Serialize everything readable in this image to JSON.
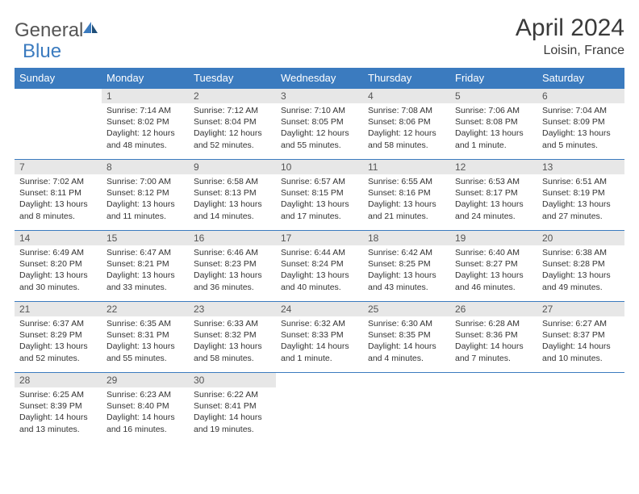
{
  "logo": {
    "text1": "General",
    "text2": "Blue"
  },
  "title": "April 2024",
  "location": "Loisin, France",
  "weekdays": [
    "Sunday",
    "Monday",
    "Tuesday",
    "Wednesday",
    "Thursday",
    "Friday",
    "Saturday"
  ],
  "colors": {
    "header_bg": "#3b7bbf",
    "header_text": "#ffffff",
    "daynum_bg": "#e7e7e7",
    "border": "#3b7bbf",
    "logo_blue": "#3b7bbf",
    "text": "#333333"
  },
  "weeks": [
    [
      null,
      {
        "n": "1",
        "sr": "Sunrise: 7:14 AM",
        "ss": "Sunset: 8:02 PM",
        "d1": "Daylight: 12 hours",
        "d2": "and 48 minutes."
      },
      {
        "n": "2",
        "sr": "Sunrise: 7:12 AM",
        "ss": "Sunset: 8:04 PM",
        "d1": "Daylight: 12 hours",
        "d2": "and 52 minutes."
      },
      {
        "n": "3",
        "sr": "Sunrise: 7:10 AM",
        "ss": "Sunset: 8:05 PM",
        "d1": "Daylight: 12 hours",
        "d2": "and 55 minutes."
      },
      {
        "n": "4",
        "sr": "Sunrise: 7:08 AM",
        "ss": "Sunset: 8:06 PM",
        "d1": "Daylight: 12 hours",
        "d2": "and 58 minutes."
      },
      {
        "n": "5",
        "sr": "Sunrise: 7:06 AM",
        "ss": "Sunset: 8:08 PM",
        "d1": "Daylight: 13 hours",
        "d2": "and 1 minute."
      },
      {
        "n": "6",
        "sr": "Sunrise: 7:04 AM",
        "ss": "Sunset: 8:09 PM",
        "d1": "Daylight: 13 hours",
        "d2": "and 5 minutes."
      }
    ],
    [
      {
        "n": "7",
        "sr": "Sunrise: 7:02 AM",
        "ss": "Sunset: 8:11 PM",
        "d1": "Daylight: 13 hours",
        "d2": "and 8 minutes."
      },
      {
        "n": "8",
        "sr": "Sunrise: 7:00 AM",
        "ss": "Sunset: 8:12 PM",
        "d1": "Daylight: 13 hours",
        "d2": "and 11 minutes."
      },
      {
        "n": "9",
        "sr": "Sunrise: 6:58 AM",
        "ss": "Sunset: 8:13 PM",
        "d1": "Daylight: 13 hours",
        "d2": "and 14 minutes."
      },
      {
        "n": "10",
        "sr": "Sunrise: 6:57 AM",
        "ss": "Sunset: 8:15 PM",
        "d1": "Daylight: 13 hours",
        "d2": "and 17 minutes."
      },
      {
        "n": "11",
        "sr": "Sunrise: 6:55 AM",
        "ss": "Sunset: 8:16 PM",
        "d1": "Daylight: 13 hours",
        "d2": "and 21 minutes."
      },
      {
        "n": "12",
        "sr": "Sunrise: 6:53 AM",
        "ss": "Sunset: 8:17 PM",
        "d1": "Daylight: 13 hours",
        "d2": "and 24 minutes."
      },
      {
        "n": "13",
        "sr": "Sunrise: 6:51 AM",
        "ss": "Sunset: 8:19 PM",
        "d1": "Daylight: 13 hours",
        "d2": "and 27 minutes."
      }
    ],
    [
      {
        "n": "14",
        "sr": "Sunrise: 6:49 AM",
        "ss": "Sunset: 8:20 PM",
        "d1": "Daylight: 13 hours",
        "d2": "and 30 minutes."
      },
      {
        "n": "15",
        "sr": "Sunrise: 6:47 AM",
        "ss": "Sunset: 8:21 PM",
        "d1": "Daylight: 13 hours",
        "d2": "and 33 minutes."
      },
      {
        "n": "16",
        "sr": "Sunrise: 6:46 AM",
        "ss": "Sunset: 8:23 PM",
        "d1": "Daylight: 13 hours",
        "d2": "and 36 minutes."
      },
      {
        "n": "17",
        "sr": "Sunrise: 6:44 AM",
        "ss": "Sunset: 8:24 PM",
        "d1": "Daylight: 13 hours",
        "d2": "and 40 minutes."
      },
      {
        "n": "18",
        "sr": "Sunrise: 6:42 AM",
        "ss": "Sunset: 8:25 PM",
        "d1": "Daylight: 13 hours",
        "d2": "and 43 minutes."
      },
      {
        "n": "19",
        "sr": "Sunrise: 6:40 AM",
        "ss": "Sunset: 8:27 PM",
        "d1": "Daylight: 13 hours",
        "d2": "and 46 minutes."
      },
      {
        "n": "20",
        "sr": "Sunrise: 6:38 AM",
        "ss": "Sunset: 8:28 PM",
        "d1": "Daylight: 13 hours",
        "d2": "and 49 minutes."
      }
    ],
    [
      {
        "n": "21",
        "sr": "Sunrise: 6:37 AM",
        "ss": "Sunset: 8:29 PM",
        "d1": "Daylight: 13 hours",
        "d2": "and 52 minutes."
      },
      {
        "n": "22",
        "sr": "Sunrise: 6:35 AM",
        "ss": "Sunset: 8:31 PM",
        "d1": "Daylight: 13 hours",
        "d2": "and 55 minutes."
      },
      {
        "n": "23",
        "sr": "Sunrise: 6:33 AM",
        "ss": "Sunset: 8:32 PM",
        "d1": "Daylight: 13 hours",
        "d2": "and 58 minutes."
      },
      {
        "n": "24",
        "sr": "Sunrise: 6:32 AM",
        "ss": "Sunset: 8:33 PM",
        "d1": "Daylight: 14 hours",
        "d2": "and 1 minute."
      },
      {
        "n": "25",
        "sr": "Sunrise: 6:30 AM",
        "ss": "Sunset: 8:35 PM",
        "d1": "Daylight: 14 hours",
        "d2": "and 4 minutes."
      },
      {
        "n": "26",
        "sr": "Sunrise: 6:28 AM",
        "ss": "Sunset: 8:36 PM",
        "d1": "Daylight: 14 hours",
        "d2": "and 7 minutes."
      },
      {
        "n": "27",
        "sr": "Sunrise: 6:27 AM",
        "ss": "Sunset: 8:37 PM",
        "d1": "Daylight: 14 hours",
        "d2": "and 10 minutes."
      }
    ],
    [
      {
        "n": "28",
        "sr": "Sunrise: 6:25 AM",
        "ss": "Sunset: 8:39 PM",
        "d1": "Daylight: 14 hours",
        "d2": "and 13 minutes."
      },
      {
        "n": "29",
        "sr": "Sunrise: 6:23 AM",
        "ss": "Sunset: 8:40 PM",
        "d1": "Daylight: 14 hours",
        "d2": "and 16 minutes."
      },
      {
        "n": "30",
        "sr": "Sunrise: 6:22 AM",
        "ss": "Sunset: 8:41 PM",
        "d1": "Daylight: 14 hours",
        "d2": "and 19 minutes."
      },
      null,
      null,
      null,
      null
    ]
  ]
}
